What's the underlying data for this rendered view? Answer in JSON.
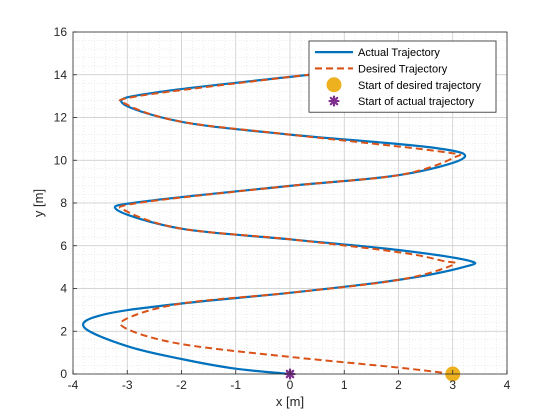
{
  "chart_data": {
    "type": "line",
    "title": "",
    "xlabel": "x [m]",
    "ylabel": "y [m]",
    "xlim": [
      -4,
      4
    ],
    "ylim": [
      0,
      16
    ],
    "xticks": [
      -4,
      -3,
      -2,
      -1,
      0,
      1,
      2,
      3,
      4
    ],
    "yticks": [
      0,
      2,
      4,
      6,
      8,
      10,
      12,
      14,
      16
    ],
    "grid": true,
    "minor_grid": true,
    "legend_position": "top-right",
    "series": [
      {
        "name": "Actual Trajectory",
        "style": "solid",
        "color": "#0072BD",
        "x": [
          0,
          -1,
          -2,
          -3,
          -3.8,
          -3.4,
          -2,
          0,
          2,
          3.2,
          3.3,
          2,
          0,
          -2,
          -3.2,
          -2.6,
          0,
          2,
          3.2,
          2.6,
          0,
          -2,
          -3.1,
          -2.4,
          0,
          0.4
        ],
        "y": [
          0,
          0.25,
          0.7,
          1.3,
          2.2,
          2.8,
          3.3,
          3.8,
          4.4,
          5.0,
          5.3,
          5.8,
          6.3,
          6.8,
          7.7,
          8.1,
          8.8,
          9.3,
          10.1,
          10.6,
          11.2,
          11.8,
          12.7,
          13.2,
          13.9,
          14.0
        ]
      },
      {
        "name": "Desired Trajectory",
        "style": "dashed",
        "color": "#D95319",
        "x": [
          3,
          2,
          0,
          -2,
          -3,
          -3,
          -2,
          0,
          2,
          3,
          2.8,
          2,
          0,
          -2,
          -3,
          -2.8,
          0,
          2,
          3,
          2.8,
          0,
          -2,
          -3,
          -2.8,
          0,
          0.4
        ],
        "y": [
          0,
          0.3,
          0.8,
          1.4,
          2.1,
          2.6,
          3.3,
          3.8,
          4.4,
          5.1,
          5.3,
          5.7,
          6.3,
          6.8,
          7.6,
          8.0,
          8.8,
          9.3,
          10.1,
          10.4,
          11.2,
          11.8,
          12.6,
          13.0,
          13.9,
          14.0
        ]
      }
    ],
    "markers": [
      {
        "name": "Start of desired trajectory",
        "x": 3,
        "y": 0,
        "color": "#EDB120",
        "shape": "circle"
      },
      {
        "name": "Start of actual trajectory",
        "x": 0,
        "y": 0,
        "color": "#7E2F8E",
        "shape": "asterisk"
      }
    ]
  }
}
